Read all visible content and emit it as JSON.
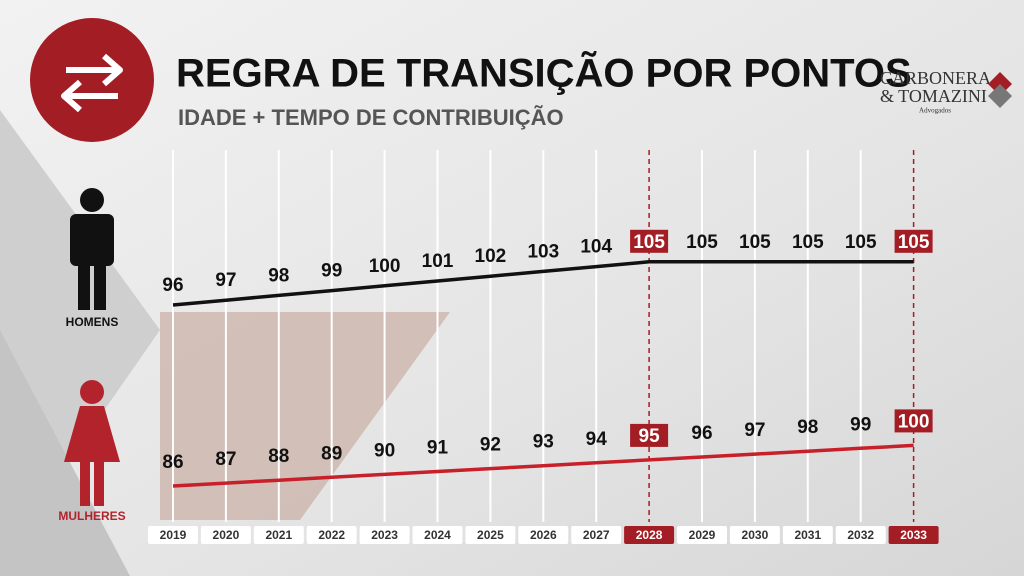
{
  "chart_data": {
    "type": "line",
    "title": "REGRA DE TRANSIÇÃO POR PONTOS",
    "subtitle": "IDADE + TEMPO DE CONTRIBUIÇÃO",
    "brand": {
      "name_line1": "CARBONERA",
      "name_line2": "& TOMAZINI",
      "tagline": "Advogados"
    },
    "categories": [
      "2019",
      "2020",
      "2021",
      "2022",
      "2023",
      "2024",
      "2025",
      "2026",
      "2027",
      "2028",
      "2029",
      "2030",
      "2031",
      "2032",
      "2033"
    ],
    "highlight_indices": [
      9,
      14
    ],
    "highlight_color": "#a31d24",
    "series": [
      {
        "name": "HOMENS",
        "color": "#111111",
        "values": [
          96,
          97,
          98,
          99,
          100,
          101,
          102,
          103,
          104,
          105,
          105,
          105,
          105,
          105,
          105
        ]
      },
      {
        "name": "MULHERES",
        "color": "#c8202a",
        "values": [
          86,
          87,
          88,
          89,
          90,
          91,
          92,
          93,
          94,
          95,
          96,
          97,
          98,
          99,
          100
        ]
      }
    ]
  }
}
